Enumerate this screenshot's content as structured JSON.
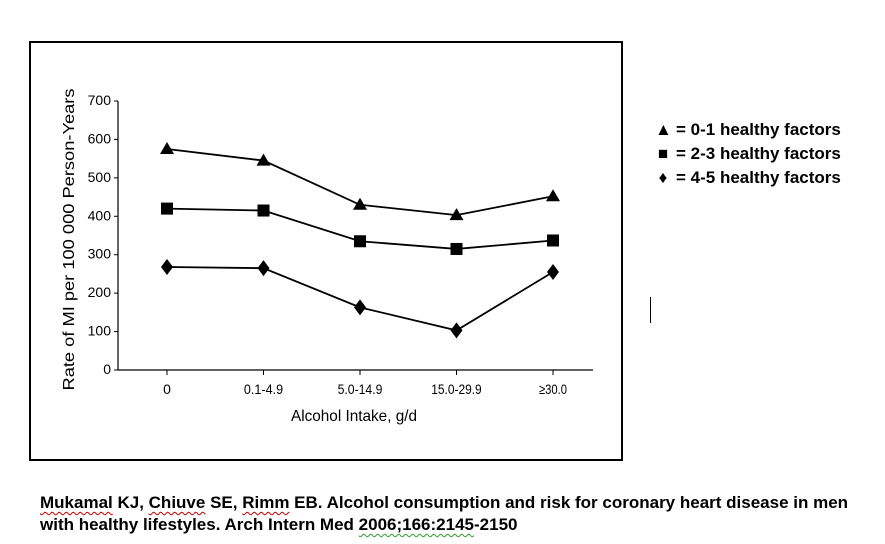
{
  "chart_data": {
    "type": "line",
    "xlabel": "Alcohol Intake, g/d",
    "ylabel": "Rate of MI per 100 000 Person-Years",
    "categories": [
      "0",
      "0.1-4.9",
      "5.0-14.9",
      "15.0-29.9",
      "≥30.0"
    ],
    "ylim": [
      0,
      700
    ],
    "yticks": [
      0,
      100,
      200,
      300,
      400,
      500,
      600,
      700
    ],
    "grid": false,
    "legend_position": "right, outside plot",
    "series": [
      {
        "name": "0-1 healthy factors",
        "marker": "triangle",
        "values": [
          575,
          545,
          430,
          403,
          452
        ]
      },
      {
        "name": "2-3 healthy factors",
        "marker": "square",
        "values": [
          420,
          415,
          335,
          315,
          337
        ]
      },
      {
        "name": "4-5 healthy factors",
        "marker": "diamond",
        "values": [
          268,
          265,
          163,
          103,
          255
        ]
      }
    ]
  },
  "legend": {
    "items": [
      {
        "symbol": "▲",
        "label": "= 0-1 healthy factors"
      },
      {
        "symbol": "■",
        "label": "= 2-3 healthy factors"
      },
      {
        "symbol": "♦",
        "label": "= 4-5 healthy factors"
      }
    ]
  },
  "citation": {
    "author_first": "Mukamal",
    "part1": " KJ, ",
    "author_second": "Chiuve",
    "part2": " SE, ",
    "author_third": "Rimm",
    "part3": " EB.  Alcohol consumption and risk for coronary heart disease in men with healthy lifestyles.  Arch Intern Med ",
    "year_vol": "2006;166:2145",
    "pages_end": "-2150"
  },
  "colors": {
    "line": "#000000",
    "background": "#ffffff",
    "spellcheck": "#c00000",
    "grammar": "#2a9d2a"
  }
}
